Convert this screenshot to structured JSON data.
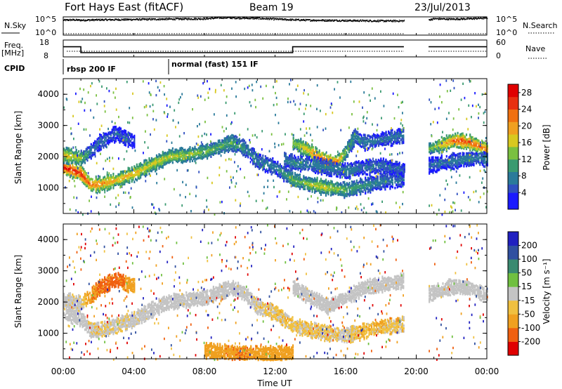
{
  "header": {
    "station": "Fort Hays East (fitACF)",
    "beam": "Beam 19",
    "date": "23/Jul/2013"
  },
  "side_labels": {
    "nsky": "N.Sky",
    "nsearch": "N.Search",
    "freq": "Freq.",
    "freq_unit": "[MHz]",
    "nave": "Nave",
    "cpid": "CPID"
  },
  "noise_axis": {
    "left_ticks": [
      "10^5",
      "10^0"
    ],
    "right_ticks": [
      "10^5",
      "10^0"
    ]
  },
  "freq_axis": {
    "left_ticks": [
      "18",
      "8"
    ],
    "right_ticks": [
      "60",
      "0"
    ]
  },
  "cpid_segments": [
    {
      "label": "rbsp 200 IF",
      "start_hour": 0
    },
    {
      "label": "normal (fast) 151 IF",
      "start_hour": 6
    }
  ],
  "chart_data": [
    {
      "type": "line",
      "panel": "noise",
      "series": [
        {
          "name": "N.Sky",
          "x_hours": [
            0,
            0.5,
            1,
            2,
            4,
            6,
            8,
            9,
            10,
            11,
            12,
            13,
            14,
            16,
            18,
            19.3
          ],
          "values_log10": [
            4.2,
            4.3,
            4.2,
            4.3,
            4.4,
            4.5,
            4.6,
            4.9,
            4.8,
            4.7,
            4.5,
            4.3,
            4.2,
            4.1,
            4.0,
            4.0
          ]
        },
        {
          "name": "N.Sky",
          "x_hours": [
            20.7,
            21,
            22,
            23,
            24
          ],
          "values_log10": [
            4.3,
            4.6,
            4.5,
            4.6,
            4.8
          ]
        }
      ]
    },
    {
      "type": "line",
      "panel": "frequency",
      "series": [
        {
          "name": "Freq.",
          "x_hours": [
            0,
            1,
            1,
            13,
            13,
            19.3
          ],
          "values": [
            14.0,
            14.0,
            10.5,
            10.5,
            14.0,
            14.0
          ],
          "ylim": [
            8,
            18
          ]
        },
        {
          "name": "Freq.",
          "x_hours": [
            20.7,
            24
          ],
          "values": [
            14.0,
            14.0
          ],
          "ylim": [
            8,
            18
          ]
        },
        {
          "name": "Nave",
          "x_hours": [
            0.2,
            19.3
          ],
          "values": [
            20,
            20
          ],
          "ylim": [
            0,
            60
          ]
        },
        {
          "name": "Nave",
          "x_hours": [
            20.7,
            24
          ],
          "values": [
            20,
            20
          ],
          "ylim": [
            0,
            60
          ]
        }
      ]
    },
    {
      "type": "heatmap",
      "panel": "power",
      "xlabel": "",
      "ylabel": "Slant Range [km]",
      "xlim": [
        0,
        24
      ],
      "ylim": [
        180,
        4500
      ],
      "y_ticks": [
        1000,
        2000,
        3000,
        4000
      ],
      "colorbar": {
        "label": "Power [dB]",
        "ticks": [
          4,
          8,
          12,
          16,
          20,
          24,
          28
        ],
        "range": [
          0,
          30
        ]
      },
      "data_gap_hours": [
        19.3,
        20.7
      ],
      "bands": [
        {
          "name": "A",
          "x_hours": [
            0,
            0.5,
            1,
            1.5,
            2,
            3,
            4,
            5,
            6,
            7,
            8,
            9,
            9.5,
            10,
            10.5,
            11,
            12,
            13,
            14,
            15,
            16,
            17,
            18,
            19,
            19.3
          ],
          "range_km": [
            1700,
            1600,
            1500,
            1150,
            1150,
            1300,
            1500,
            1800,
            2050,
            2100,
            2200,
            2400,
            2500,
            2400,
            2200,
            1900,
            1700,
            1300,
            1150,
            1050,
            980,
            1120,
            1250,
            1300,
            1350
          ],
          "power_db": [
            28,
            28,
            27,
            24,
            22,
            20,
            19,
            17,
            16,
            15,
            14,
            12,
            12,
            11,
            9,
            8,
            8,
            12,
            16,
            17,
            13,
            10,
            8,
            7,
            7
          ]
        },
        {
          "name": "B",
          "x_hours": [
            0,
            0.5,
            1,
            1.5,
            2,
            3,
            3.5,
            4
          ],
          "range_km": [
            2100,
            2050,
            2000,
            2200,
            2500,
            2800,
            2650,
            2550
          ],
          "power_db": [
            18,
            17,
            15,
            8,
            7,
            6,
            6,
            5
          ]
        },
        {
          "name": "C",
          "x_hours": [
            13,
            14,
            14.5,
            15,
            15.5,
            16,
            16.5,
            17,
            18,
            19,
            19.3
          ],
          "range_km": [
            2500,
            2200,
            2000,
            1850,
            1900,
            2200,
            2700,
            2500,
            2600,
            2700,
            2700
          ],
          "power_db": [
            14,
            20,
            24,
            26,
            22,
            14,
            9,
            8,
            7,
            7,
            7
          ]
        },
        {
          "name": "D",
          "x_hours": [
            12.5,
            13,
            14,
            15,
            16,
            17,
            18,
            19,
            19.3
          ],
          "range_km": [
            1950,
            1850,
            1800,
            1700,
            1600,
            1700,
            1750,
            1650,
            1600
          ],
          "power_db": [
            8,
            9,
            8,
            8,
            8,
            7,
            7,
            6,
            6
          ]
        },
        {
          "name": "E",
          "x_hours": [
            20.7,
            21.5,
            22,
            22.5,
            23,
            23.5,
            24
          ],
          "range_km": [
            2300,
            2450,
            2550,
            2550,
            2500,
            2400,
            2250
          ],
          "power_db": [
            14,
            19,
            23,
            25,
            25,
            24,
            22
          ]
        },
        {
          "name": "F",
          "x_hours": [
            20.7,
            21.5,
            22.5,
            23.5,
            24
          ],
          "range_km": [
            1750,
            1850,
            1950,
            2000,
            1950
          ],
          "power_db": [
            6,
            7,
            8,
            8,
            8
          ]
        }
      ]
    },
    {
      "type": "heatmap",
      "panel": "velocity",
      "xlabel": "Time UT",
      "ylabel": "Slant Range [km]",
      "x_ticks": [
        "00:00",
        "04:00",
        "08:00",
        "12:00",
        "16:00",
        "20:00",
        "00:00"
      ],
      "xlim": [
        0,
        24
      ],
      "ylim": [
        180,
        4500
      ],
      "y_ticks": [
        1000,
        2000,
        3000,
        4000
      ],
      "colorbar": {
        "label": "Velocity [m s⁻¹]",
        "ticks": [
          200,
          100,
          50,
          15,
          -15,
          -50,
          -100,
          -200
        ],
        "range": [
          -250,
          250
        ]
      },
      "data_gap_hours": [
        19.3,
        20.7
      ],
      "bands": [
        {
          "name": "A",
          "x_hours": [
            0,
            1,
            1.5,
            2,
            3,
            4,
            5,
            6,
            7,
            8,
            9,
            9.5,
            10,
            10.5,
            11,
            12,
            13,
            14,
            15,
            16,
            17,
            18,
            19,
            19.3
          ],
          "range_km": [
            1700,
            1500,
            1150,
            1150,
            1300,
            1500,
            1800,
            2050,
            2100,
            2200,
            2400,
            2500,
            2400,
            2200,
            1900,
            1700,
            1300,
            1150,
            1050,
            980,
            1120,
            1250,
            1300,
            1350
          ],
          "velocity": [
            0,
            0,
            -5,
            -10,
            -10,
            -5,
            0,
            0,
            0,
            0,
            0,
            0,
            0,
            0,
            -10,
            -20,
            -20,
            -20,
            -20,
            -10,
            -30,
            -25,
            -20,
            -20
          ]
        },
        {
          "name": "B",
          "x_hours": [
            0,
            1,
            1.5,
            2,
            3,
            3.5,
            4
          ],
          "range_km": [
            2100,
            2000,
            2200,
            2500,
            2800,
            2650,
            2550
          ],
          "velocity": [
            0,
            -10,
            -60,
            -80,
            -90,
            -70,
            -40
          ]
        },
        {
          "name": "C",
          "x_hours": [
            13,
            14,
            15,
            16,
            17,
            18,
            19,
            19.3
          ],
          "range_km": [
            2500,
            2200,
            1900,
            2200,
            2500,
            2600,
            2700,
            2700
          ],
          "velocity": [
            0,
            0,
            0,
            0,
            0,
            0,
            0,
            0
          ]
        },
        {
          "name": "D",
          "x_hours": [
            20.7,
            22,
            23,
            24
          ],
          "range_km": [
            2300,
            2550,
            2500,
            2250
          ],
          "velocity": [
            0,
            0,
            0,
            0
          ]
        },
        {
          "name": "G",
          "x_hours": [
            8,
            9,
            10,
            11,
            12,
            13
          ],
          "range_km": [
            500,
            450,
            400,
            380,
            400,
            420
          ],
          "velocity": [
            -60,
            -60,
            -70,
            -60,
            -60,
            -50
          ]
        }
      ]
    }
  ]
}
